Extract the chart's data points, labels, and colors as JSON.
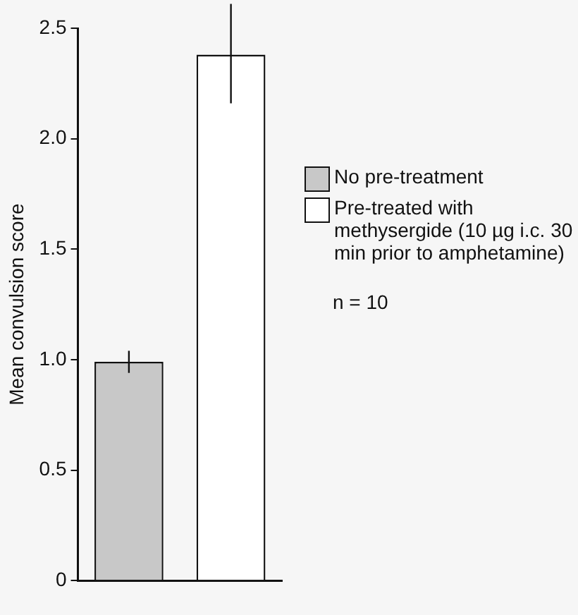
{
  "chart_data": {
    "type": "bar",
    "ylabel": "Mean convulsion score",
    "categories": [
      null,
      null
    ],
    "series": [
      {
        "name": "No pre-treatment",
        "color": "#c8c8c8",
        "values": [
          0.99,
          null
        ],
        "errors": [
          0.05,
          null
        ]
      },
      {
        "name": "Pre-treated with methysergide (10 µg i.c. 30 min prior to amphetamine)",
        "color": "#ffffff",
        "values": [
          null,
          2.38
        ],
        "errors": [
          null,
          [
            2.16,
            2.61
          ]
        ]
      }
    ],
    "ylim": [
      0,
      2.5
    ],
    "yticks": [
      0,
      {
        "value": 0.5,
        "label": "0.5"
      },
      {
        "value": 1,
        "label": "1.0"
      },
      {
        "value": 1.5,
        "label": "1.5"
      },
      {
        "value": 2,
        "label": "2.0"
      },
      {
        "value": 2.5,
        "label": "2.5"
      }
    ],
    "grid": false,
    "legend": "right",
    "annotations": [
      "n = 10"
    ]
  }
}
